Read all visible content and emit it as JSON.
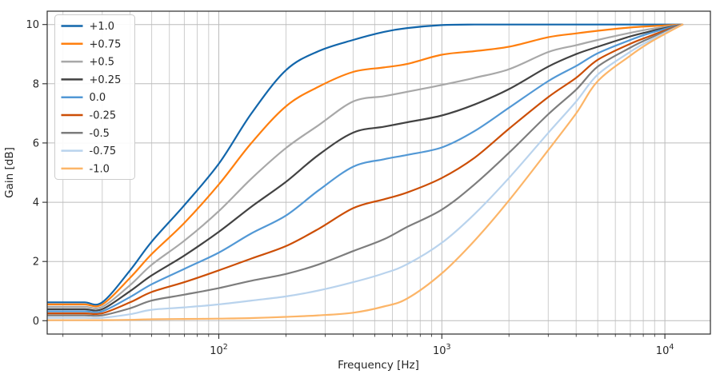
{
  "figure": {
    "background": "#ffffff"
  },
  "styles": {
    "grid_minor": "#cdcdcd",
    "grid_major": "#bcbcbc",
    "spine": "#2b2b2b",
    "tick_color": "#2b2b2b",
    "legend_border": "#cccccc",
    "legend_background": "#ffffff"
  },
  "chart_data": {
    "type": "line",
    "title": "",
    "xlabel": "Frequency [Hz]",
    "ylabel": "Gain [dB]",
    "x_scale": "log",
    "xlim": [
      17,
      16000
    ],
    "ylim": [
      -0.45,
      10.45
    ],
    "x_major_ticks": [
      100,
      1000,
      10000
    ],
    "x_major_tick_base": "10",
    "x_major_tick_exponents": [
      "2",
      "3",
      "4"
    ],
    "x_minor_subs": [
      2,
      3,
      4,
      5,
      6,
      7,
      8,
      9
    ],
    "y_ticks": [
      0,
      2,
      4,
      6,
      8,
      10
    ],
    "grid": "both",
    "legend_position": "upper-left",
    "x": [
      17,
      20,
      25,
      30,
      40,
      50,
      70,
      100,
      140,
      200,
      280,
      400,
      550,
      700,
      1000,
      1400,
      2000,
      3000,
      4000,
      5000,
      7000,
      8500,
      10000,
      12000
    ],
    "series": [
      {
        "name": "+1.0",
        "color": "#1266ab",
        "values": [
          0.62,
          0.62,
          0.62,
          0.62,
          1.7,
          2.67,
          3.9,
          5.3,
          7.0,
          8.46,
          9.1,
          9.48,
          9.75,
          9.88,
          9.98,
          10.0,
          10.0,
          10.0,
          10.0,
          10.0,
          10.0,
          10.0,
          10.0,
          10.0
        ]
      },
      {
        "name": "+0.75",
        "color": "#ff7f0e",
        "values": [
          0.55,
          0.55,
          0.55,
          0.55,
          1.45,
          2.25,
          3.3,
          4.6,
          6.0,
          7.24,
          7.9,
          8.4,
          8.55,
          8.67,
          8.98,
          9.1,
          9.25,
          9.57,
          9.7,
          9.79,
          9.9,
          9.94,
          9.97,
          10.0
        ]
      },
      {
        "name": "+0.5",
        "color": "#a8a8a8",
        "values": [
          0.47,
          0.47,
          0.47,
          0.47,
          1.2,
          1.89,
          2.7,
          3.7,
          4.8,
          5.83,
          6.6,
          7.4,
          7.58,
          7.73,
          7.96,
          8.2,
          8.49,
          9.07,
          9.3,
          9.48,
          9.72,
          9.84,
          9.92,
          10.0
        ]
      },
      {
        "name": "+0.25",
        "color": "#424242",
        "values": [
          0.39,
          0.39,
          0.39,
          0.39,
          1.0,
          1.53,
          2.2,
          3.0,
          3.85,
          4.69,
          5.6,
          6.35,
          6.55,
          6.7,
          6.93,
          7.3,
          7.82,
          8.58,
          9.0,
          9.25,
          9.6,
          9.76,
          9.88,
          10.0
        ]
      },
      {
        "name": "0.0",
        "color": "#5298d5",
        "values": [
          0.32,
          0.32,
          0.32,
          0.32,
          0.8,
          1.23,
          1.75,
          2.3,
          2.95,
          3.55,
          4.4,
          5.2,
          5.45,
          5.6,
          5.85,
          6.4,
          7.19,
          8.09,
          8.6,
          9.03,
          9.48,
          9.7,
          9.85,
          10.0
        ]
      },
      {
        "name": "-0.25",
        "color": "#cc4e05",
        "values": [
          0.25,
          0.25,
          0.25,
          0.25,
          0.62,
          0.97,
          1.3,
          1.7,
          2.1,
          2.52,
          3.1,
          3.8,
          4.1,
          4.33,
          4.82,
          5.5,
          6.48,
          7.55,
          8.2,
          8.81,
          9.35,
          9.6,
          9.8,
          10.0
        ]
      },
      {
        "name": "-0.5",
        "color": "#7d7d7d",
        "values": [
          0.18,
          0.18,
          0.18,
          0.18,
          0.42,
          0.68,
          0.88,
          1.1,
          1.35,
          1.58,
          1.9,
          2.35,
          2.75,
          3.17,
          3.75,
          4.6,
          5.67,
          6.97,
          7.8,
          8.58,
          9.22,
          9.53,
          9.76,
          10.0
        ]
      },
      {
        "name": "-0.75",
        "color": "#b9d3ed",
        "values": [
          0.1,
          0.1,
          0.1,
          0.1,
          0.22,
          0.37,
          0.45,
          0.55,
          0.68,
          0.82,
          1.02,
          1.3,
          1.6,
          1.91,
          2.63,
          3.6,
          4.82,
          6.34,
          7.4,
          8.31,
          9.08,
          9.45,
          9.72,
          10.0
        ]
      },
      {
        "name": "-1.0",
        "color": "#fcb568",
        "values": [
          0.02,
          0.02,
          0.02,
          0.02,
          0.03,
          0.05,
          0.06,
          0.07,
          0.09,
          0.13,
          0.18,
          0.27,
          0.48,
          0.75,
          1.6,
          2.7,
          4.06,
          5.76,
          7.0,
          8.09,
          8.95,
          9.38,
          9.68,
          10.0
        ]
      }
    ]
  }
}
